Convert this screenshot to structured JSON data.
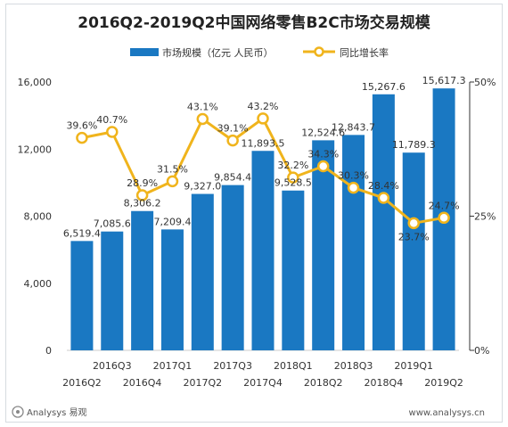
{
  "chart_data": {
    "type": "bar",
    "title": "2016Q2-2019Q2中国网络零售B2C市场交易规模",
    "categories": [
      "2016Q2",
      "2016Q3",
      "2016Q4",
      "2017Q1",
      "2017Q2",
      "2017Q3",
      "2017Q4",
      "2018Q1",
      "2018Q2",
      "2018Q3",
      "2018Q4",
      "2019Q1",
      "2019Q2"
    ],
    "series": [
      {
        "name": "市场规模（亿元 人民币）",
        "type": "bar",
        "axis": "left",
        "color": "#1a78c2",
        "values": [
          6519.4,
          7085.6,
          8306.2,
          7209.4,
          9327.0,
          9854.4,
          11893.5,
          9528.5,
          12524.6,
          12843.7,
          15267.6,
          11789.3,
          15617.3
        ],
        "labels": [
          "6,519.4",
          "7,085.6",
          "8,306.2",
          "7,209.4",
          "9,327.0",
          "9,854.4",
          "11,893.5",
          "9,528.5",
          "12,524.6",
          "12,843.7",
          "15,267.6",
          "11,789.3",
          "15,617.3"
        ]
      },
      {
        "name": "同比增长率",
        "type": "line",
        "axis": "right",
        "color": "#f0b41c",
        "values": [
          39.6,
          40.7,
          28.9,
          31.5,
          43.1,
          39.1,
          43.2,
          32.2,
          34.3,
          30.3,
          28.4,
          23.7,
          24.7
        ],
        "labels": [
          "39.6%",
          "40.7%",
          "28.9%",
          "31.5%",
          "43.1%",
          "39.1%",
          "43.2%",
          "32.2%",
          "34.3%",
          "30.3%",
          "28.4%",
          "23.7%",
          "24.7%"
        ]
      }
    ],
    "y_left": {
      "range": [
        0,
        16000
      ],
      "ticks": [
        0,
        4000,
        8000,
        12000,
        16000
      ],
      "tick_labels": [
        "0",
        "4,000",
        "8,000",
        "12,000",
        "16,000"
      ]
    },
    "y_right": {
      "range": [
        0,
        50
      ],
      "ticks": [
        0,
        25,
        50
      ],
      "tick_labels": [
        "0%",
        "25%",
        "50%"
      ]
    },
    "grid": false,
    "legend_position": "top"
  },
  "footer": {
    "source_brand": "Analysys 易观",
    "website": "www.analysys.cn"
  }
}
